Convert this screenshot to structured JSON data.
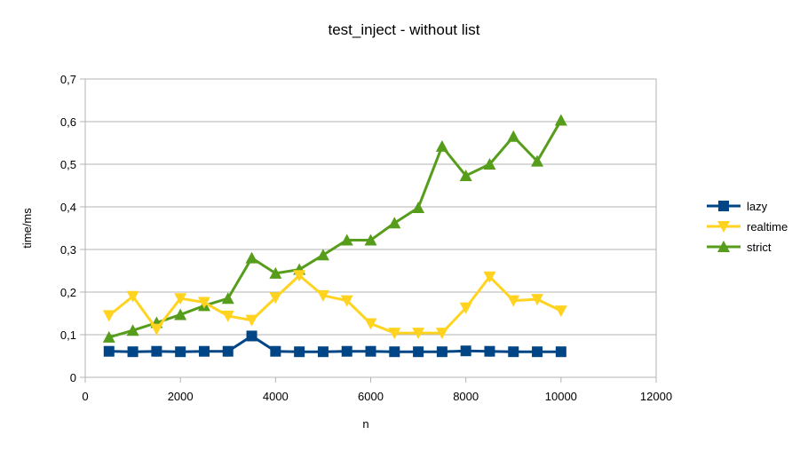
{
  "chart_data": {
    "type": "line",
    "title": "test_inject - without list",
    "xlabel": "n",
    "ylabel": "time/ms",
    "xlim": [
      0,
      12000
    ],
    "ylim": [
      0,
      0.7
    ],
    "x_ticks": [
      0,
      2000,
      4000,
      6000,
      8000,
      10000,
      12000
    ],
    "x_tick_labels": [
      "0",
      "2000",
      "4000",
      "6000",
      "8000",
      "10000",
      "12000"
    ],
    "y_ticks": [
      0,
      0.1,
      0.2,
      0.3,
      0.4,
      0.5,
      0.6,
      0.7
    ],
    "y_tick_labels": [
      "0",
      "0,1",
      "0,2",
      "0,3",
      "0,4",
      "0,5",
      "0,6",
      "0,7"
    ],
    "grid": "horizontal",
    "legend_position": "right",
    "x": [
      500,
      1000,
      1500,
      2000,
      2500,
      3000,
      3500,
      4000,
      4500,
      5000,
      5500,
      6000,
      6500,
      7000,
      7500,
      8000,
      8500,
      9000,
      9500,
      10000
    ],
    "series": [
      {
        "name": "lazy",
        "color": "#004586",
        "marker": "square",
        "values": [
          0.061,
          0.06,
          0.061,
          0.06,
          0.061,
          0.061,
          0.097,
          0.061,
          0.06,
          0.06,
          0.061,
          0.061,
          0.06,
          0.06,
          0.06,
          0.062,
          0.061,
          0.06,
          0.06,
          0.06
        ]
      },
      {
        "name": "realtime",
        "color": "#FFD320",
        "marker": "triangle-down",
        "values": [
          0.145,
          0.19,
          0.113,
          0.185,
          0.176,
          0.144,
          0.134,
          0.187,
          0.239,
          0.192,
          0.18,
          0.126,
          0.104,
          0.104,
          0.104,
          0.163,
          0.236,
          0.18,
          0.183,
          0.156
        ]
      },
      {
        "name": "strict",
        "color": "#579D1C",
        "marker": "triangle-up",
        "values": [
          0.094,
          0.11,
          0.128,
          0.147,
          0.168,
          0.185,
          0.28,
          0.244,
          0.253,
          0.287,
          0.322,
          0.322,
          0.362,
          0.398,
          0.542,
          0.473,
          0.5,
          0.565,
          0.507,
          0.603
        ]
      }
    ]
  }
}
